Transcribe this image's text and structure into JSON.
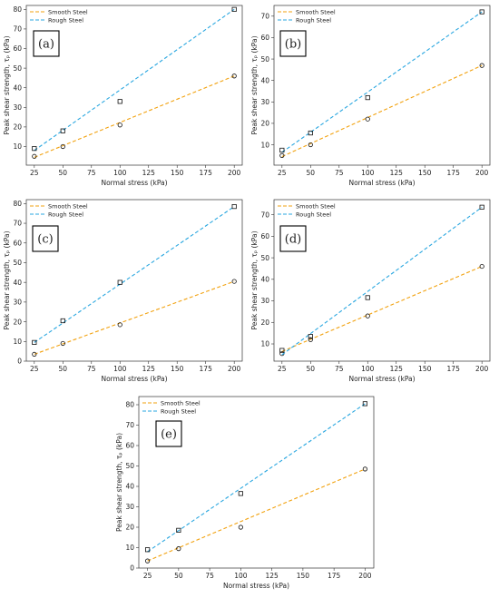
{
  "colors": {
    "smooth": "#f2a20f",
    "rough": "#2aa7e0",
    "axis": "#333333"
  },
  "chart_data": [
    {
      "type": "scatter",
      "label": "(a)",
      "xlabel": "Normal stress (kPa)",
      "ylabel": "Peak shear strength, τₚ (kPa)",
      "xlim": [
        18,
        207
      ],
      "ylim": [
        0.5,
        82
      ],
      "xticks": [
        25,
        50,
        75,
        100,
        125,
        150,
        175,
        200
      ],
      "yticks": [
        10,
        20,
        30,
        40,
        50,
        60,
        70,
        80
      ],
      "legend_position": "top-left",
      "series": [
        {
          "name": "Smooth Steel",
          "x": [
            25,
            50,
            100,
            200
          ],
          "y": [
            5,
            10,
            21,
            46
          ],
          "fit": [
            [
              25,
              4.5
            ],
            [
              200,
              46
            ]
          ],
          "marker": "circle"
        },
        {
          "name": "Rough Steel",
          "x": [
            25,
            50,
            100,
            200
          ],
          "y": [
            9,
            18,
            33,
            80
          ],
          "fit": [
            [
              25,
              8
            ],
            [
              200,
              80
            ]
          ],
          "marker": "square"
        }
      ]
    },
    {
      "type": "scatter",
      "label": "(b)",
      "xlabel": "Normal stress (kPa)",
      "ylabel": "Peak shear strength, τₚ (kPa)",
      "xlim": [
        18,
        207
      ],
      "ylim": [
        0.5,
        75
      ],
      "xticks": [
        25,
        50,
        75,
        100,
        125,
        150,
        175,
        200
      ],
      "yticks": [
        10,
        20,
        30,
        40,
        50,
        60,
        70
      ],
      "legend_position": "top-left",
      "series": [
        {
          "name": "Smooth Steel",
          "x": [
            25,
            50,
            100,
            200
          ],
          "y": [
            5,
            10,
            22,
            47
          ],
          "fit": [
            [
              25,
              4.5
            ],
            [
              200,
              47
            ]
          ],
          "marker": "circle"
        },
        {
          "name": "Rough Steel",
          "x": [
            25,
            50,
            100,
            200
          ],
          "y": [
            7.5,
            15.5,
            32,
            72
          ],
          "fit": [
            [
              25,
              6.5
            ],
            [
              200,
              72
            ]
          ],
          "marker": "square"
        }
      ]
    },
    {
      "type": "scatter",
      "label": "(c)",
      "xlabel": "Normal stress (kPa)",
      "ylabel": "Peak shear strength, τₚ (kPa)",
      "xlim": [
        18,
        207
      ],
      "ylim": [
        0,
        82
      ],
      "xticks": [
        25,
        50,
        75,
        100,
        125,
        150,
        175,
        200
      ],
      "yticks": [
        0,
        10,
        20,
        30,
        40,
        50,
        60,
        70,
        80
      ],
      "legend_position": "top-left",
      "series": [
        {
          "name": "Smooth Steel",
          "x": [
            25,
            50,
            100,
            200
          ],
          "y": [
            3.5,
            9,
            18.5,
            40.5
          ],
          "fit": [
            [
              25,
              3.5
            ],
            [
              200,
              40.5
            ]
          ],
          "marker": "circle"
        },
        {
          "name": "Rough Steel",
          "x": [
            25,
            50,
            100,
            200
          ],
          "y": [
            9.5,
            20.5,
            40,
            78.5
          ],
          "fit": [
            [
              25,
              9.5
            ],
            [
              200,
              78.5
            ]
          ],
          "marker": "square"
        }
      ]
    },
    {
      "type": "scatter",
      "label": "(d)",
      "xlabel": "Normal stress (kPa)",
      "ylabel": "Peak shear strength, τₚ (kPa)",
      "xlim": [
        18,
        207
      ],
      "ylim": [
        2,
        77
      ],
      "xticks": [
        25,
        50,
        75,
        100,
        125,
        150,
        175,
        200
      ],
      "yticks": [
        10,
        20,
        30,
        40,
        50,
        60,
        70
      ],
      "legend_position": "top-left",
      "series": [
        {
          "name": "Smooth Steel",
          "x": [
            25,
            50,
            100,
            200
          ],
          "y": [
            5.5,
            12,
            23,
            46
          ],
          "fit": [
            [
              25,
              6.5
            ],
            [
              200,
              46
            ]
          ],
          "marker": "circle"
        },
        {
          "name": "Rough Steel",
          "x": [
            25,
            50,
            100,
            200
          ],
          "y": [
            7,
            13.5,
            31.5,
            73.5
          ],
          "fit": [
            [
              25,
              5
            ],
            [
              200,
              73.5
            ]
          ],
          "marker": "square"
        }
      ]
    },
    {
      "type": "scatter",
      "label": "(e)",
      "xlabel": "Normal stress (kPa)",
      "ylabel": "Peak shear strength, τₚ (kPa)",
      "xlim": [
        18,
        207
      ],
      "ylim": [
        0,
        84
      ],
      "xticks": [
        25,
        50,
        75,
        100,
        125,
        150,
        175,
        200
      ],
      "yticks": [
        0,
        10,
        20,
        30,
        40,
        50,
        60,
        70,
        80
      ],
      "legend_position": "top-left",
      "series": [
        {
          "name": "Smooth Steel",
          "x": [
            25,
            50,
            100,
            200
          ],
          "y": [
            3.5,
            9.5,
            20,
            48.5
          ],
          "fit": [
            [
              25,
              3.5
            ],
            [
              200,
              48.5
            ]
          ],
          "marker": "circle"
        },
        {
          "name": "Rough Steel",
          "x": [
            25,
            50,
            100,
            200
          ],
          "y": [
            9,
            18.5,
            36.5,
            80.5
          ],
          "fit": [
            [
              25,
              8
            ],
            [
              200,
              80.5
            ]
          ],
          "marker": "square"
        }
      ]
    }
  ]
}
